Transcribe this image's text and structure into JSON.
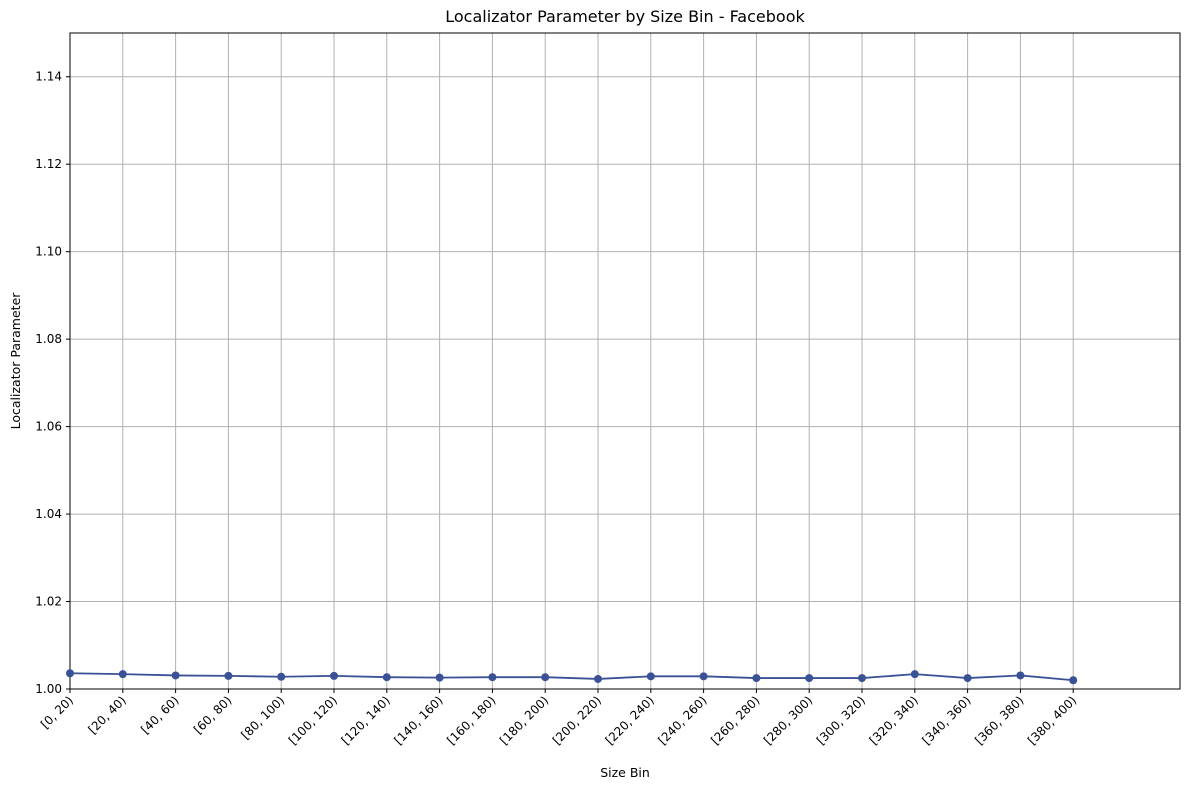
{
  "chart_data": {
    "type": "line",
    "title": "Localizator Parameter by Size Bin - Facebook",
    "xlabel": "Size Bin",
    "ylabel": "Localizator Parameter",
    "categories": [
      "[0, 20)",
      "[20, 40)",
      "[40, 60)",
      "[60, 80)",
      "[80, 100)",
      "[100, 120)",
      "[120, 140)",
      "[140, 160)",
      "[160, 180)",
      "[180, 200)",
      "[200, 220)",
      "[220, 240)",
      "[240, 260)",
      "[260, 280)",
      "[280, 300)",
      "[300, 320)",
      "[320, 340)",
      "[340, 360)",
      "[360, 380)",
      "[380, 400)"
    ],
    "values": [
      1.0036,
      1.0034,
      1.0031,
      1.003,
      1.0028,
      1.003,
      1.0027,
      1.0026,
      1.0027,
      1.0027,
      1.0023,
      1.0029,
      1.0029,
      1.0025,
      1.0025,
      1.0025,
      1.0034,
      1.0025,
      1.0031,
      1.002
    ],
    "ylim": [
      1.0,
      1.15
    ],
    "yticks": [
      "1.00",
      "1.02",
      "1.04",
      "1.06",
      "1.08",
      "1.10",
      "1.12",
      "1.14"
    ],
    "grid": true,
    "color": "#3a5196"
  }
}
